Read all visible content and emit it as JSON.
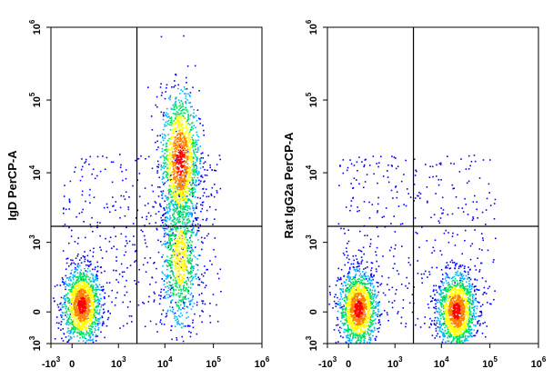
{
  "chart_data": [
    {
      "type": "scatter",
      "title": "",
      "xlabel": "",
      "ylabel": "IgD PerCP-A",
      "x_scale": "biexponential",
      "y_scale": "biexponential",
      "xlim": [
        -1000,
        1000000
      ],
      "ylim": [
        -1000,
        1000000
      ],
      "x_ticks": [
        {
          "base": "-10",
          "exp": "3",
          "value": -1000
        },
        {
          "base": "0",
          "exp": "",
          "value": 0
        },
        {
          "base": "10",
          "exp": "3",
          "value": 1000
        },
        {
          "base": "10",
          "exp": "4",
          "value": 10000
        },
        {
          "base": "10",
          "exp": "5",
          "value": 100000
        },
        {
          "base": "10",
          "exp": "6",
          "value": 1000000
        }
      ],
      "y_ticks": [
        {
          "base": "10",
          "exp": "3",
          "value": -1000,
          "label_neg": true
        },
        {
          "base": "0",
          "exp": "",
          "value": 0
        },
        {
          "base": "10",
          "exp": "3",
          "value": 1000
        },
        {
          "base": "10",
          "exp": "4",
          "value": 10000
        },
        {
          "base": "10",
          "exp": "5",
          "value": 100000
        },
        {
          "base": "10",
          "exp": "6",
          "value": 1000000
        }
      ],
      "gate_x": 2500,
      "gate_y": 1700,
      "populations": [
        {
          "x_center": 200,
          "y_center": 100,
          "density": "high"
        },
        {
          "x_center": 20000,
          "y_center": 15000,
          "density": "high"
        },
        {
          "x_center": 20000,
          "y_center": 800,
          "density": "medium"
        }
      ],
      "grid": false
    },
    {
      "type": "scatter",
      "title": "",
      "xlabel": "",
      "ylabel": "Rat IgG2a PerCP-A",
      "x_scale": "biexponential",
      "y_scale": "biexponential",
      "xlim": [
        -1000,
        1000000
      ],
      "ylim": [
        -1000,
        1000000
      ],
      "x_ticks": [
        {
          "base": "-10",
          "exp": "3",
          "value": -1000
        },
        {
          "base": "0",
          "exp": "",
          "value": 0
        },
        {
          "base": "10",
          "exp": "3",
          "value": 1000
        },
        {
          "base": "10",
          "exp": "4",
          "value": 10000
        },
        {
          "base": "10",
          "exp": "5",
          "value": 100000
        },
        {
          "base": "10",
          "exp": "6",
          "value": 1000000
        }
      ],
      "y_ticks": [
        {
          "base": "10",
          "exp": "3",
          "value": -1000,
          "label_neg": true
        },
        {
          "base": "0",
          "exp": "",
          "value": 0
        },
        {
          "base": "10",
          "exp": "3",
          "value": 1000
        },
        {
          "base": "10",
          "exp": "4",
          "value": 10000
        },
        {
          "base": "10",
          "exp": "5",
          "value": 100000
        },
        {
          "base": "10",
          "exp": "6",
          "value": 1000000
        }
      ],
      "gate_x": 2500,
      "gate_y": 1700,
      "populations": [
        {
          "x_center": 200,
          "y_center": 50,
          "density": "high"
        },
        {
          "x_center": 20000,
          "y_center": 20,
          "density": "high"
        }
      ],
      "grid": false
    }
  ],
  "colors": {
    "density_ramp": [
      "#0000ff",
      "#00b4ff",
      "#00e060",
      "#ffff00",
      "#ff8000",
      "#ff0000"
    ],
    "axis": "#000000",
    "gate": "#000000"
  }
}
